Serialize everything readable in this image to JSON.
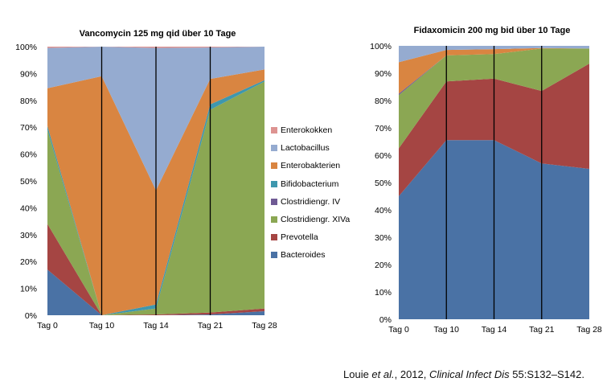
{
  "chart_data": [
    {
      "type": "area",
      "stacked": true,
      "title": "Vancomycin 125 mg qid über 10 Tage",
      "categories": [
        "Tag 0",
        "Tag 10",
        "Tag 14",
        "Tag 21",
        "Tag 28"
      ],
      "ylim": [
        0,
        100
      ],
      "yticks": [
        "0%",
        "10%",
        "20%",
        "30%",
        "40%",
        "50%",
        "60%",
        "70%",
        "80%",
        "90%",
        "100%"
      ],
      "series": [
        {
          "name": "Bacteroides",
          "values": [
            17,
            0,
            0,
            0.3,
            1.5
          ]
        },
        {
          "name": "Prevotella",
          "values": [
            17,
            0,
            0.3,
            0.7,
            1
          ]
        },
        {
          "name": "Clostridiengr. XIVa",
          "values": [
            35,
            0,
            2.2,
            75.5,
            84.5
          ]
        },
        {
          "name": "Clostridiengr. IV",
          "values": [
            0,
            0,
            0,
            0,
            0
          ]
        },
        {
          "name": "Bifidobacterium",
          "values": [
            1.5,
            0,
            1.5,
            2,
            0.5
          ]
        },
        {
          "name": "Enterobakterien",
          "values": [
            14,
            89,
            42.5,
            9.5,
            4
          ]
        },
        {
          "name": "Lactobacillus",
          "values": [
            15,
            11,
            53,
            11.7,
            8.5
          ]
        },
        {
          "name": "Enterokokken",
          "values": [
            0.5,
            0,
            0.5,
            0.3,
            0
          ]
        }
      ]
    },
    {
      "type": "area",
      "stacked": true,
      "title": "Fidaxomicin 200 mg bid über 10 Tage",
      "categories": [
        "Tag 0",
        "Tag 10",
        "Tag 14",
        "Tag 21",
        "Tag 28"
      ],
      "ylim": [
        0,
        100
      ],
      "yticks": [
        "0%",
        "10%",
        "20%",
        "30%",
        "40%",
        "50%",
        "60%",
        "70%",
        "80%",
        "90%",
        "100%"
      ],
      "series": [
        {
          "name": "Bacteroides",
          "values": [
            45,
            65.5,
            65.5,
            57,
            55
          ]
        },
        {
          "name": "Prevotella",
          "values": [
            17.5,
            21.5,
            22.5,
            26.5,
            38.5
          ]
        },
        {
          "name": "Clostridiengr. XIVa",
          "values": [
            19.5,
            9.5,
            9,
            15.5,
            5.5
          ]
        },
        {
          "name": "Clostridiengr. IV",
          "values": [
            0.5,
            0,
            0,
            0,
            0
          ]
        },
        {
          "name": "Bifidobacterium",
          "values": [
            0,
            0,
            0,
            0,
            0
          ]
        },
        {
          "name": "Enterobakterien",
          "values": [
            11.5,
            2,
            1.8,
            0.2,
            0
          ]
        },
        {
          "name": "Lactobacillus",
          "values": [
            6,
            1.5,
            1.2,
            0.8,
            1
          ]
        },
        {
          "name": "Enterokokken",
          "values": [
            0,
            0,
            0,
            0,
            0
          ]
        }
      ]
    }
  ],
  "colors": {
    "Bacteroides": "#4a72a5",
    "Prevotella": "#a54543",
    "Clostridiengr. XIVa": "#8ba753",
    "Clostridiengr. IV": "#6f5a94",
    "Bifidobacterium": "#3e97ae",
    "Enterobakterien": "#d98541",
    "Lactobacillus": "#95abd0",
    "Enterokokken": "#dd9391"
  },
  "legend": {
    "position": "between-charts",
    "items": [
      "Enterokokken",
      "Lactobacillus",
      "Enterobakterien",
      "Bifidobacterium",
      "Clostridiengr. IV",
      "Clostridiengr. XIVa",
      "Prevotella",
      "Bacteroides"
    ]
  },
  "citation": {
    "author": "Louie ",
    "etal": "et al.",
    "year": ", 2012, ",
    "journal": "Clinical Infect Dis",
    "pages": " 55:S132–S142."
  }
}
